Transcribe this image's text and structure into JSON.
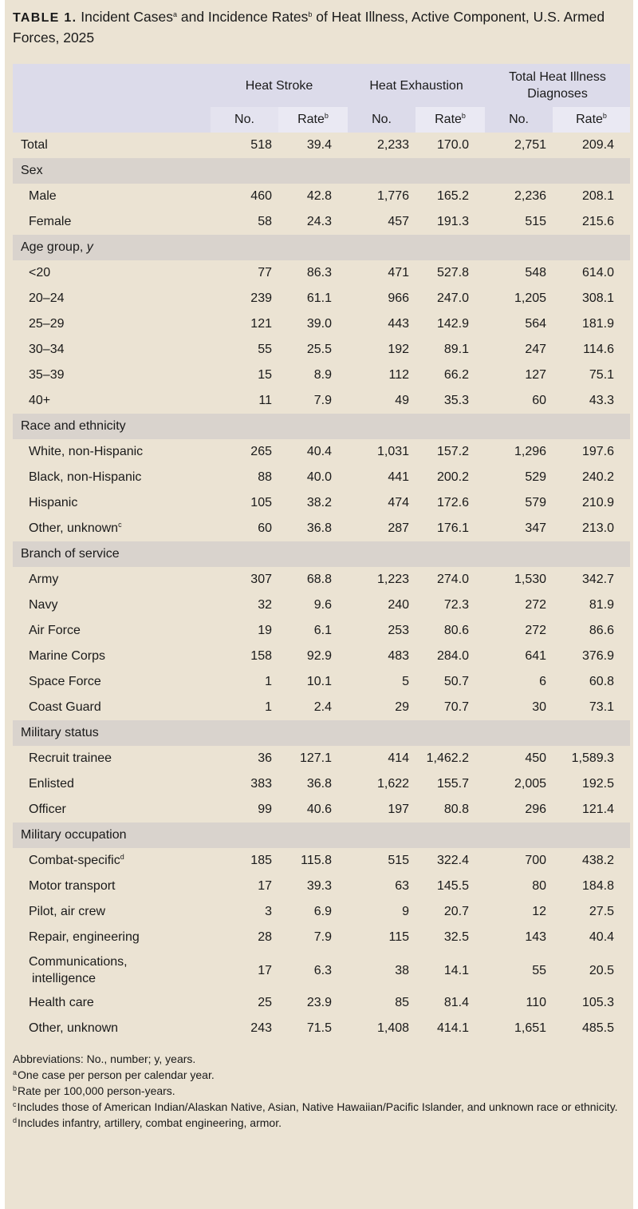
{
  "title": {
    "label": "TABLE 1.",
    "part1": "Incident Cases",
    "sup_a": "a",
    "part2": " and Incidence Rates",
    "sup_b": "b",
    "part3": " of Heat Illness, Active Component, U.S. Armed Forces, 2025"
  },
  "header": {
    "groups": [
      "Heat Stroke",
      "Heat Exhaustion",
      "Total Heat Illness Diagnoses"
    ],
    "no_label": "No.",
    "rate_label": "Rate",
    "rate_sup": "b"
  },
  "rows": [
    {
      "type": "total",
      "label": "Total",
      "values": [
        "518",
        "39.4",
        "2,233",
        "170.0",
        "2,751",
        "209.4"
      ]
    },
    {
      "type": "section",
      "label": "Sex"
    },
    {
      "type": "row",
      "label": "Male",
      "values": [
        "460",
        "42.8",
        "1,776",
        "165.2",
        "2,236",
        "208.1"
      ]
    },
    {
      "type": "row",
      "label": "Female",
      "values": [
        "58",
        "24.3",
        "457",
        "191.3",
        "515",
        "215.6"
      ]
    },
    {
      "type": "section",
      "label": "Age group, ",
      "label_em": "y"
    },
    {
      "type": "row",
      "label": "<20",
      "values": [
        "77",
        "86.3",
        "471",
        "527.8",
        "548",
        "614.0"
      ]
    },
    {
      "type": "row",
      "label": "20–24",
      "values": [
        "239",
        "61.1",
        "966",
        "247.0",
        "1,205",
        "308.1"
      ]
    },
    {
      "type": "row",
      "label": "25–29",
      "values": [
        "121",
        "39.0",
        "443",
        "142.9",
        "564",
        "181.9"
      ]
    },
    {
      "type": "row",
      "label": "30–34",
      "values": [
        "55",
        "25.5",
        "192",
        "89.1",
        "247",
        "114.6"
      ]
    },
    {
      "type": "row",
      "label": "35–39",
      "values": [
        "15",
        "8.9",
        "112",
        "66.2",
        "127",
        "75.1"
      ]
    },
    {
      "type": "row",
      "label": "40+",
      "values": [
        "11",
        "7.9",
        "49",
        "35.3",
        "60",
        "43.3"
      ]
    },
    {
      "type": "section",
      "label": "Race and ethnicity"
    },
    {
      "type": "row",
      "label": "White, non-Hispanic",
      "values": [
        "265",
        "40.4",
        "1,031",
        "157.2",
        "1,296",
        "197.6"
      ]
    },
    {
      "type": "row",
      "label": "Black, non-Hispanic",
      "values": [
        "88",
        "40.0",
        "441",
        "200.2",
        "529",
        "240.2"
      ]
    },
    {
      "type": "row",
      "label": "Hispanic",
      "values": [
        "105",
        "38.2",
        "474",
        "172.6",
        "579",
        "210.9"
      ]
    },
    {
      "type": "row",
      "label": "Other, unknown",
      "sup": "c",
      "values": [
        "60",
        "36.8",
        "287",
        "176.1",
        "347",
        "213.0"
      ]
    },
    {
      "type": "section",
      "label": "Branch of service"
    },
    {
      "type": "row",
      "label": "Army",
      "values": [
        "307",
        "68.8",
        "1,223",
        "274.0",
        "1,530",
        "342.7"
      ]
    },
    {
      "type": "row",
      "label": "Navy",
      "values": [
        "32",
        "9.6",
        "240",
        "72.3",
        "272",
        "81.9"
      ]
    },
    {
      "type": "row",
      "label": "Air Force",
      "values": [
        "19",
        "6.1",
        "253",
        "80.6",
        "272",
        "86.6"
      ]
    },
    {
      "type": "row",
      "label": "Marine Corps",
      "values": [
        "158",
        "92.9",
        "483",
        "284.0",
        "641",
        "376.9"
      ]
    },
    {
      "type": "row",
      "label": "Space Force",
      "values": [
        "1",
        "10.1",
        "5",
        "50.7",
        "6",
        "60.8"
      ]
    },
    {
      "type": "row",
      "label": "Coast Guard",
      "values": [
        "1",
        "2.4",
        "29",
        "70.7",
        "30",
        "73.1"
      ]
    },
    {
      "type": "section",
      "label": "Military status"
    },
    {
      "type": "row",
      "label": "Recruit trainee",
      "values": [
        "36",
        "127.1",
        "414",
        "1,462.2",
        "450",
        "1,589.3"
      ]
    },
    {
      "type": "row",
      "label": "Enlisted",
      "values": [
        "383",
        "36.8",
        "1,622",
        "155.7",
        "2,005",
        "192.5"
      ]
    },
    {
      "type": "row",
      "label": "Officer",
      "values": [
        "99",
        "40.6",
        "197",
        "80.8",
        "296",
        "121.4"
      ]
    },
    {
      "type": "section",
      "label": "Military occupation"
    },
    {
      "type": "row",
      "label": "Combat-specific",
      "sup": "d",
      "values": [
        "185",
        "115.8",
        "515",
        "322.4",
        "700",
        "438.2"
      ]
    },
    {
      "type": "row",
      "label": "Motor transport",
      "values": [
        "17",
        "39.3",
        "63",
        "145.5",
        "80",
        "184.8"
      ]
    },
    {
      "type": "row",
      "label": "Pilot, air crew",
      "values": [
        "3",
        "6.9",
        "9",
        "20.7",
        "12",
        "27.5"
      ]
    },
    {
      "type": "row",
      "label": "Repair, engineering",
      "values": [
        "28",
        "7.9",
        "115",
        "32.5",
        "143",
        "40.4"
      ]
    },
    {
      "type": "row",
      "label": "Communications,",
      "label2": "intelligence",
      "tall": true,
      "values": [
        "17",
        "6.3",
        "38",
        "14.1",
        "55",
        "20.5"
      ]
    },
    {
      "type": "row",
      "label": "Health care",
      "values": [
        "25",
        "23.9",
        "85",
        "81.4",
        "110",
        "105.3"
      ]
    },
    {
      "type": "row",
      "label": "Other, unknown",
      "values": [
        "243",
        "71.5",
        "1,408",
        "414.1",
        "1,651",
        "485.5"
      ]
    }
  ],
  "notes": {
    "abbreviations": "Abbreviations: No., number; y, years.",
    "footnotes": [
      {
        "mark": "a",
        "text": "One case per person per calendar year."
      },
      {
        "mark": "b",
        "text": "Rate per 100,000 person-years."
      },
      {
        "mark": "c",
        "text": "Includes those of American Indian/Alaskan Native, Asian, Native Hawaiian/Pacific Islander, and unknown race or ethnicity."
      },
      {
        "mark": "d",
        "text": "Includes infantry, artillery, combat engineering, armor."
      }
    ]
  },
  "colors": {
    "background": "#ebe3d3",
    "header": "#dcdbea",
    "section_band": "#d9d3cd"
  }
}
